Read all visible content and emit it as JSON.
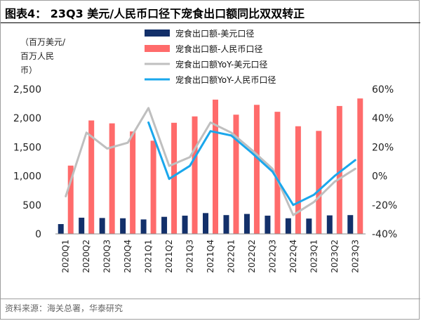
{
  "title": "图表4： 23Q3 美元/人民币口径下宠食出口额同比双双转正",
  "source": "资料来源：海关总署，华泰研究",
  "colors": {
    "usd_bar": "#13306a",
    "cny_bar": "#ff6b6b",
    "usd_yoy": "#bfbfbf",
    "cny_yoy": "#1aa7ec"
  },
  "chart_data": {
    "type": "bar",
    "left_axis_unit": [
      "（百万美元/",
      "百万人民",
      "币）"
    ],
    "categories": [
      "2020Q1",
      "2020Q2",
      "2020Q3",
      "2020Q4",
      "2021Q1",
      "2021Q2",
      "2021Q3",
      "2021Q4",
      "2022Q1",
      "2022Q2",
      "2022Q3",
      "2022Q4",
      "2023Q1",
      "2023Q2",
      "2023Q3"
    ],
    "left_axis": {
      "min": 0,
      "max": 2500,
      "ticks": [
        "0",
        "500",
        "1,000",
        "1,500",
        "2,000",
        "2,500"
      ]
    },
    "right_axis": {
      "min": -40,
      "max": 60,
      "ticks": [
        "-40%",
        "-20%",
        "0%",
        "20%",
        "40%",
        "60%"
      ]
    },
    "legend_position": "top-right",
    "grid": false,
    "series": [
      {
        "name": "宠食出口额-美元口径",
        "type": "bar",
        "axis": "left",
        "values": [
          170,
          280,
          275,
          270,
          250,
          295,
          315,
          360,
          325,
          345,
          315,
          270,
          265,
          320,
          325
        ]
      },
      {
        "name": "宠食出口额-人民币口径",
        "type": "bar",
        "axis": "left",
        "values": [
          1180,
          1960,
          1910,
          1770,
          1610,
          1920,
          2030,
          2320,
          2060,
          2230,
          2110,
          1860,
          1780,
          2210,
          2340
        ]
      },
      {
        "name": "宠食出口额YoY-美元口径",
        "type": "line",
        "axis": "right",
        "values": [
          -14,
          30,
          19,
          23,
          47,
          7,
          13,
          37,
          30,
          18,
          5,
          -27,
          -18,
          -4,
          5
        ]
      },
      {
        "name": "宠食出口额YoY-人民币口径",
        "type": "line",
        "axis": "right",
        "values": [
          null,
          null,
          null,
          null,
          37,
          -2,
          7,
          31,
          28,
          16,
          3,
          -20,
          -13,
          0,
          11
        ]
      }
    ]
  }
}
